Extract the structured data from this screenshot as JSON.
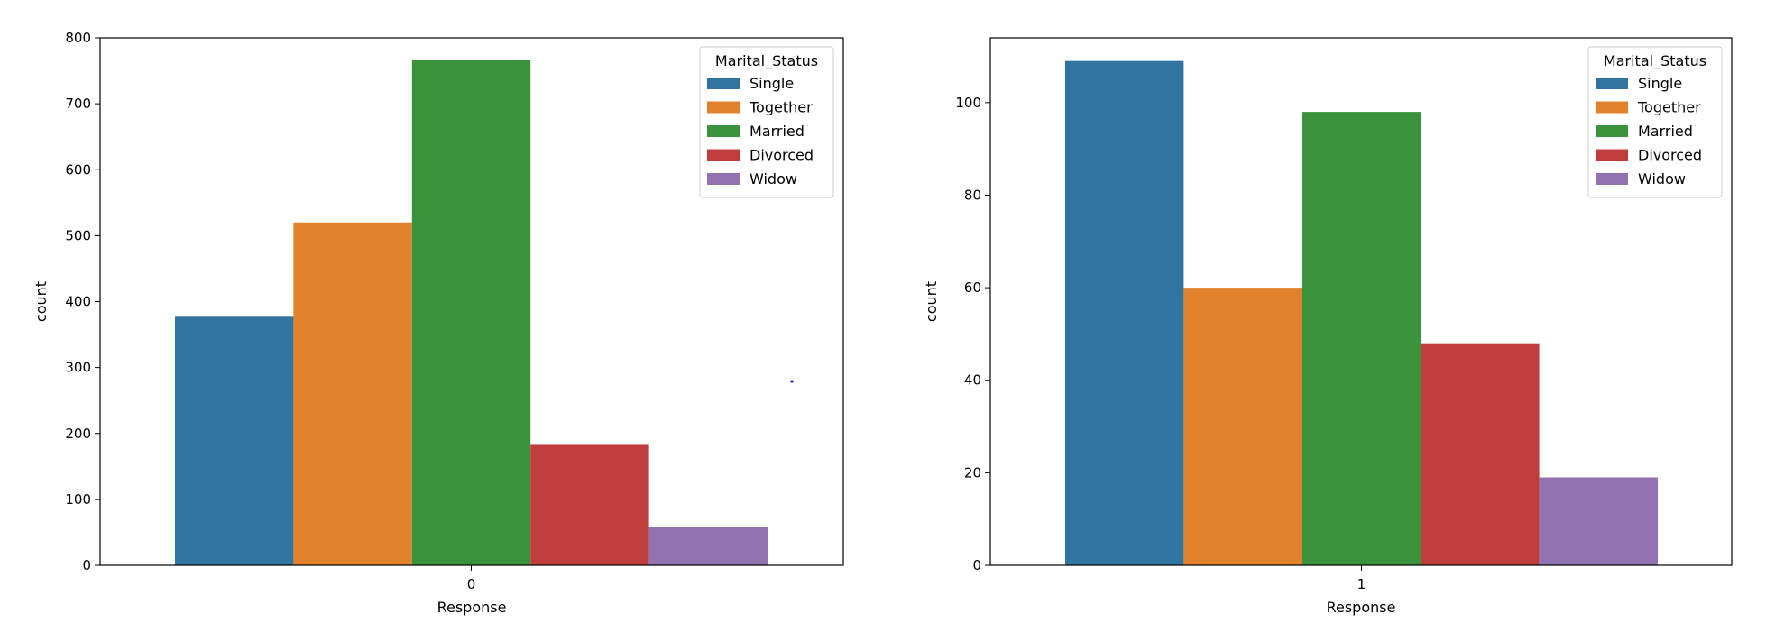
{
  "chart_data": [
    {
      "type": "bar",
      "title": "",
      "xlabel": "Response",
      "ylabel": "count",
      "categories": [
        "0"
      ],
      "ylim": [
        0,
        800
      ],
      "yticks": [
        0,
        100,
        200,
        300,
        400,
        500,
        600,
        700,
        800
      ],
      "grid": false,
      "legend": {
        "title": "Marital_Status",
        "placement": "top-right"
      },
      "series": [
        {
          "name": "Single",
          "color": "#3274a1",
          "values": [
            377
          ]
        },
        {
          "name": "Together",
          "color": "#e1812c",
          "values": [
            520
          ]
        },
        {
          "name": "Married",
          "color": "#3a923a",
          "values": [
            766
          ]
        },
        {
          "name": "Divorced",
          "color": "#c03d3e",
          "values": [
            184
          ]
        },
        {
          "name": "Widow",
          "color": "#9372b2",
          "values": [
            58
          ]
        }
      ]
    },
    {
      "type": "bar",
      "title": "",
      "xlabel": "Response",
      "ylabel": "count",
      "categories": [
        "1"
      ],
      "ylim": [
        0,
        114
      ],
      "yticks": [
        0,
        20,
        40,
        60,
        80,
        100
      ],
      "grid": false,
      "legend": {
        "title": "Marital_Status",
        "placement": "top-right"
      },
      "series": [
        {
          "name": "Single",
          "color": "#3274a1",
          "values": [
            109
          ]
        },
        {
          "name": "Together",
          "color": "#e1812c",
          "values": [
            60
          ]
        },
        {
          "name": "Married",
          "color": "#3a923a",
          "values": [
            98
          ]
        },
        {
          "name": "Divorced",
          "color": "#c03d3e",
          "values": [
            48
          ]
        },
        {
          "name": "Widow",
          "color": "#9372b2",
          "values": [
            19
          ]
        }
      ]
    }
  ]
}
